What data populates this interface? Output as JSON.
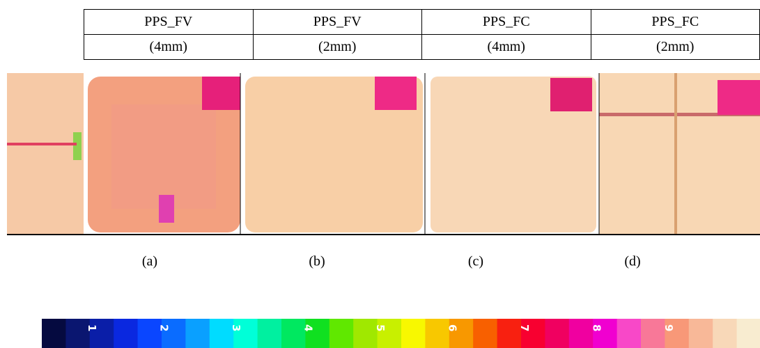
{
  "table": {
    "rows": [
      [
        "PPS_FV",
        "PPS_FV",
        "PPS_FC",
        "PPS_FC"
      ],
      [
        "(4mm)",
        "(2mm)",
        "(4mm)",
        "(2mm)"
      ]
    ]
  },
  "captions": [
    "(a)",
    "(b)",
    "(c)",
    "(d)"
  ],
  "colorbar": {
    "labels": [
      "1",
      "2",
      "3",
      "4",
      "5",
      "6",
      "7",
      "8",
      "9"
    ]
  }
}
